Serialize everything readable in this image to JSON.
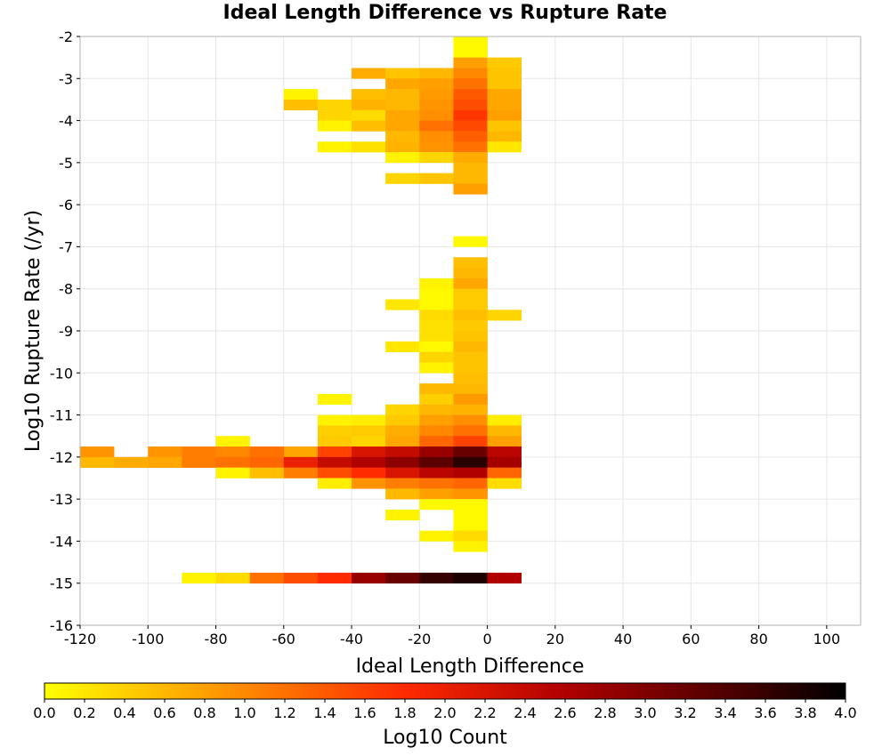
{
  "chart_data": {
    "type": "heatmap",
    "title": "Ideal Length Difference vs Rupture Rate",
    "xlabel": "Ideal Length Difference",
    "ylabel": "Log10 Rupture Rate (/yr)",
    "xlim": [
      -120,
      110
    ],
    "ylim": [
      -16,
      -2
    ],
    "xticks": [
      -120,
      -100,
      -80,
      -60,
      -40,
      -20,
      0,
      20,
      40,
      60,
      80,
      100
    ],
    "yticks": [
      -2,
      -3,
      -4,
      -5,
      -6,
      -7,
      -8,
      -9,
      -10,
      -11,
      -12,
      -13,
      -14,
      -15,
      -16
    ],
    "grid": true,
    "bin_width_x": 10,
    "bin_height_y": 0.25,
    "colorbar": {
      "label": "Log10 Count",
      "range": [
        0.0,
        4.0
      ],
      "ticks": [
        "0.0",
        "0.2",
        "0.4",
        "0.6",
        "0.8",
        "1.0",
        "1.2",
        "1.4",
        "1.6",
        "1.8",
        "2.0",
        "2.2",
        "2.4",
        "2.6",
        "2.8",
        "3.0",
        "3.2",
        "3.4",
        "3.6",
        "3.8",
        "4.0"
      ],
      "placement": "bottom"
    },
    "cells": [
      {
        "x": -5,
        "y": -2.125,
        "v": 0.05
      },
      {
        "x": -5,
        "y": -2.375,
        "v": 0.05
      },
      {
        "x": -5,
        "y": -2.625,
        "v": 0.8
      },
      {
        "x": 5,
        "y": -2.625,
        "v": 0.45
      },
      {
        "x": -35,
        "y": -2.875,
        "v": 0.7
      },
      {
        "x": -25,
        "y": -2.875,
        "v": 0.5
      },
      {
        "x": -15,
        "y": -2.875,
        "v": 0.6
      },
      {
        "x": -5,
        "y": -2.875,
        "v": 1.0
      },
      {
        "x": 5,
        "y": -2.875,
        "v": 0.5
      },
      {
        "x": -25,
        "y": -3.125,
        "v": 0.75
      },
      {
        "x": -15,
        "y": -3.125,
        "v": 0.8
      },
      {
        "x": -5,
        "y": -3.125,
        "v": 1.2
      },
      {
        "x": 5,
        "y": -3.125,
        "v": 0.5
      },
      {
        "x": -55,
        "y": -3.375,
        "v": 0.1
      },
      {
        "x": -35,
        "y": -3.375,
        "v": 0.55
      },
      {
        "x": -25,
        "y": -3.375,
        "v": 0.6
      },
      {
        "x": -15,
        "y": -3.375,
        "v": 0.85
      },
      {
        "x": -5,
        "y": -3.375,
        "v": 1.4
      },
      {
        "x": 5,
        "y": -3.375,
        "v": 0.75
      },
      {
        "x": -55,
        "y": -3.625,
        "v": 0.55
      },
      {
        "x": -45,
        "y": -3.625,
        "v": 0.35
      },
      {
        "x": -35,
        "y": -3.625,
        "v": 0.65
      },
      {
        "x": -25,
        "y": -3.625,
        "v": 0.6
      },
      {
        "x": -15,
        "y": -3.625,
        "v": 0.9
      },
      {
        "x": -5,
        "y": -3.625,
        "v": 1.5
      },
      {
        "x": 5,
        "y": -3.625,
        "v": 0.75
      },
      {
        "x": -45,
        "y": -3.875,
        "v": 0.35
      },
      {
        "x": -35,
        "y": -3.875,
        "v": 0.3
      },
      {
        "x": -25,
        "y": -3.875,
        "v": 0.75
      },
      {
        "x": -15,
        "y": -3.875,
        "v": 0.95
      },
      {
        "x": -5,
        "y": -3.875,
        "v": 1.7
      },
      {
        "x": 5,
        "y": -3.875,
        "v": 0.8
      },
      {
        "x": -45,
        "y": -4.125,
        "v": 0.1
      },
      {
        "x": -35,
        "y": -4.125,
        "v": 0.55
      },
      {
        "x": -25,
        "y": -4.125,
        "v": 0.75
      },
      {
        "x": -15,
        "y": -4.125,
        "v": 1.2
      },
      {
        "x": -5,
        "y": -4.125,
        "v": 1.55
      },
      {
        "x": 5,
        "y": -4.125,
        "v": 0.5
      },
      {
        "x": -25,
        "y": -4.375,
        "v": 0.6
      },
      {
        "x": -15,
        "y": -4.375,
        "v": 0.95
      },
      {
        "x": -5,
        "y": -4.375,
        "v": 1.35
      },
      {
        "x": 5,
        "y": -4.375,
        "v": 0.6
      },
      {
        "x": -45,
        "y": -4.625,
        "v": 0.1
      },
      {
        "x": -35,
        "y": -4.625,
        "v": 0.25
      },
      {
        "x": -25,
        "y": -4.625,
        "v": 0.65
      },
      {
        "x": -15,
        "y": -4.625,
        "v": 0.9
      },
      {
        "x": -5,
        "y": -4.625,
        "v": 1.2
      },
      {
        "x": 5,
        "y": -4.625,
        "v": 0.2
      },
      {
        "x": -25,
        "y": -4.875,
        "v": 0.1
      },
      {
        "x": -15,
        "y": -4.875,
        "v": 0.35
      },
      {
        "x": -5,
        "y": -4.875,
        "v": 0.7
      },
      {
        "x": -5,
        "y": -5.125,
        "v": 0.6
      },
      {
        "x": -25,
        "y": -5.375,
        "v": 0.35
      },
      {
        "x": -15,
        "y": -5.375,
        "v": 0.5
      },
      {
        "x": -5,
        "y": -5.375,
        "v": 0.6
      },
      {
        "x": -5,
        "y": -5.625,
        "v": 0.8
      },
      {
        "x": -5,
        "y": -6.875,
        "v": 0.05
      },
      {
        "x": -5,
        "y": -7.375,
        "v": 0.55
      },
      {
        "x": -5,
        "y": -7.625,
        "v": 0.6
      },
      {
        "x": -15,
        "y": -7.875,
        "v": 0.1
      },
      {
        "x": -5,
        "y": -7.875,
        "v": 0.75
      },
      {
        "x": -15,
        "y": -8.125,
        "v": 0.05
      },
      {
        "x": -5,
        "y": -8.125,
        "v": 0.45
      },
      {
        "x": -25,
        "y": -8.375,
        "v": 0.2
      },
      {
        "x": -15,
        "y": -8.375,
        "v": 0.05
      },
      {
        "x": -5,
        "y": -8.375,
        "v": 0.45
      },
      {
        "x": -15,
        "y": -8.625,
        "v": 0.3
      },
      {
        "x": -5,
        "y": -8.625,
        "v": 0.55
      },
      {
        "x": 5,
        "y": -8.625,
        "v": 0.35
      },
      {
        "x": -15,
        "y": -8.875,
        "v": 0.25
      },
      {
        "x": -5,
        "y": -8.875,
        "v": 0.45
      },
      {
        "x": -15,
        "y": -9.125,
        "v": 0.25
      },
      {
        "x": -5,
        "y": -9.125,
        "v": 0.5
      },
      {
        "x": -25,
        "y": -9.375,
        "v": 0.2
      },
      {
        "x": -15,
        "y": -9.375,
        "v": 0.05
      },
      {
        "x": -5,
        "y": -9.375,
        "v": 0.6
      },
      {
        "x": -15,
        "y": -9.625,
        "v": 0.35
      },
      {
        "x": -5,
        "y": -9.625,
        "v": 0.5
      },
      {
        "x": -15,
        "y": -9.875,
        "v": 0.1
      },
      {
        "x": -5,
        "y": -9.875,
        "v": 0.5
      },
      {
        "x": -5,
        "y": -10.125,
        "v": 0.55
      },
      {
        "x": -15,
        "y": -10.375,
        "v": 0.6
      },
      {
        "x": -5,
        "y": -10.375,
        "v": 0.6
      },
      {
        "x": -45,
        "y": -10.625,
        "v": 0.1
      },
      {
        "x": -15,
        "y": -10.625,
        "v": 0.4
      },
      {
        "x": -5,
        "y": -10.625,
        "v": 0.85
      },
      {
        "x": -25,
        "y": -10.875,
        "v": 0.35
      },
      {
        "x": -15,
        "y": -10.875,
        "v": 0.6
      },
      {
        "x": -5,
        "y": -10.875,
        "v": 0.65
      },
      {
        "x": -45,
        "y": -11.125,
        "v": 0.1
      },
      {
        "x": -35,
        "y": -11.125,
        "v": 0.15
      },
      {
        "x": -25,
        "y": -11.125,
        "v": 0.45
      },
      {
        "x": -15,
        "y": -11.125,
        "v": 0.8
      },
      {
        "x": -5,
        "y": -11.125,
        "v": 0.95
      },
      {
        "x": 5,
        "y": -11.125,
        "v": 0.15
      },
      {
        "x": -45,
        "y": -11.375,
        "v": 0.4
      },
      {
        "x": -35,
        "y": -11.375,
        "v": 0.45
      },
      {
        "x": -25,
        "y": -11.375,
        "v": 0.7
      },
      {
        "x": -15,
        "y": -11.375,
        "v": 1.0
      },
      {
        "x": -5,
        "y": -11.375,
        "v": 1.2
      },
      {
        "x": 5,
        "y": -11.375,
        "v": 0.6
      },
      {
        "x": -45,
        "y": -11.625,
        "v": 0.45
      },
      {
        "x": -35,
        "y": -11.625,
        "v": 0.35
      },
      {
        "x": -25,
        "y": -11.625,
        "v": 0.75
      },
      {
        "x": -15,
        "y": -11.625,
        "v": 1.3
      },
      {
        "x": -5,
        "y": -11.625,
        "v": 1.6
      },
      {
        "x": 5,
        "y": -11.625,
        "v": 0.8
      },
      {
        "x": -75,
        "y": -11.625,
        "v": 0.1
      },
      {
        "x": -55,
        "y": -11.875,
        "v": 0.75
      },
      {
        "x": -45,
        "y": -11.875,
        "v": 1.6
      },
      {
        "x": -35,
        "y": -11.875,
        "v": 2.2
      },
      {
        "x": -25,
        "y": -11.875,
        "v": 2.4
      },
      {
        "x": -15,
        "y": -11.875,
        "v": 2.8
      },
      {
        "x": -5,
        "y": -11.875,
        "v": 3.2
      },
      {
        "x": 5,
        "y": -11.875,
        "v": 2.5
      },
      {
        "x": -115,
        "y": -11.875,
        "v": 0.9
      },
      {
        "x": -95,
        "y": -11.875,
        "v": 0.9
      },
      {
        "x": -85,
        "y": -11.875,
        "v": 1.1
      },
      {
        "x": -75,
        "y": -11.875,
        "v": 1.0
      },
      {
        "x": -65,
        "y": -11.875,
        "v": 1.2
      },
      {
        "x": -115,
        "y": -12.125,
        "v": 0.6
      },
      {
        "x": -105,
        "y": -12.125,
        "v": 0.7
      },
      {
        "x": -95,
        "y": -12.125,
        "v": 0.75
      },
      {
        "x": -85,
        "y": -12.125,
        "v": 1.1
      },
      {
        "x": -75,
        "y": -12.125,
        "v": 1.2
      },
      {
        "x": -65,
        "y": -12.125,
        "v": 1.3
      },
      {
        "x": -55,
        "y": -12.125,
        "v": 2.0
      },
      {
        "x": -45,
        "y": -12.125,
        "v": 2.4
      },
      {
        "x": -35,
        "y": -12.125,
        "v": 2.6
      },
      {
        "x": -25,
        "y": -12.125,
        "v": 2.9
      },
      {
        "x": -15,
        "y": -12.125,
        "v": 3.3
      },
      {
        "x": -5,
        "y": -12.125,
        "v": 3.7
      },
      {
        "x": 5,
        "y": -12.125,
        "v": 2.7
      },
      {
        "x": -75,
        "y": -12.375,
        "v": 0.1
      },
      {
        "x": -65,
        "y": -12.375,
        "v": 0.55
      },
      {
        "x": -55,
        "y": -12.375,
        "v": 1.1
      },
      {
        "x": -45,
        "y": -12.375,
        "v": 1.5
      },
      {
        "x": -35,
        "y": -12.375,
        "v": 1.8
      },
      {
        "x": -25,
        "y": -12.375,
        "v": 2.2
      },
      {
        "x": -15,
        "y": -12.375,
        "v": 2.5
      },
      {
        "x": -5,
        "y": -12.375,
        "v": 2.6
      },
      {
        "x": 5,
        "y": -12.375,
        "v": 1.3
      },
      {
        "x": -45,
        "y": -12.625,
        "v": 0.15
      },
      {
        "x": -35,
        "y": -12.625,
        "v": 0.9
      },
      {
        "x": -25,
        "y": -12.625,
        "v": 1.1
      },
      {
        "x": -15,
        "y": -12.625,
        "v": 1.2
      },
      {
        "x": -5,
        "y": -12.625,
        "v": 1.3
      },
      {
        "x": 5,
        "y": -12.625,
        "v": 0.3
      },
      {
        "x": -25,
        "y": -12.875,
        "v": 0.6
      },
      {
        "x": -15,
        "y": -12.875,
        "v": 0.8
      },
      {
        "x": -5,
        "y": -12.875,
        "v": 0.9
      },
      {
        "x": -15,
        "y": -13.125,
        "v": 0.05
      },
      {
        "x": -5,
        "y": -13.125,
        "v": 0.05
      },
      {
        "x": -25,
        "y": -13.375,
        "v": 0.1
      },
      {
        "x": -5,
        "y": -13.375,
        "v": 0.05
      },
      {
        "x": -5,
        "y": -13.625,
        "v": 0.05
      },
      {
        "x": -15,
        "y": -13.875,
        "v": 0.1
      },
      {
        "x": -5,
        "y": -13.875,
        "v": 0.3
      },
      {
        "x": -5,
        "y": -14.125,
        "v": 0.1
      },
      {
        "x": -85,
        "y": -14.875,
        "v": 0.1
      },
      {
        "x": -75,
        "y": -14.875,
        "v": 0.3
      },
      {
        "x": -65,
        "y": -14.875,
        "v": 1.2
      },
      {
        "x": -55,
        "y": -14.875,
        "v": 1.5
      },
      {
        "x": -45,
        "y": -14.875,
        "v": 1.8
      },
      {
        "x": -35,
        "y": -14.875,
        "v": 2.8
      },
      {
        "x": -25,
        "y": -14.875,
        "v": 3.2
      },
      {
        "x": -15,
        "y": -14.875,
        "v": 3.6
      },
      {
        "x": -5,
        "y": -14.875,
        "v": 3.8
      },
      {
        "x": 5,
        "y": -14.875,
        "v": 2.6
      }
    ]
  }
}
